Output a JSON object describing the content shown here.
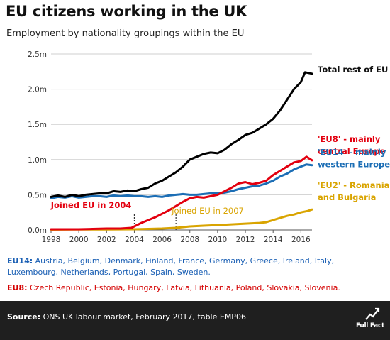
{
  "header": {
    "title": "EU citizens working in the UK",
    "subtitle": "Employment by nationality groupings within the EU"
  },
  "notes": {
    "eu14_label": "EU14:",
    "eu14_text": "Austria, Belgium, Denmark, Finland, France, Germany, Greece, Ireland, Italy, Luxembourg, Netherlands, Portugal, Spain, Sweden.",
    "eu8_label": "EU8:",
    "eu8_text": "Czech Republic, Estonia, Hungary, Latvia, Lithuania, Poland, Slovakia, Slovenia."
  },
  "footer": {
    "source_label": "Source:",
    "source_text": "ONS UK labour market, February 2017, table EMP06",
    "brand": "Full Fact"
  },
  "colors": {
    "total": "#000000",
    "eu8": "#e3000f",
    "eu14": "#1c6eb5",
    "eu2": "#d9a400"
  },
  "chart_data": {
    "type": "line",
    "title": "EU citizens working in the UK",
    "subtitle": "Employment by nationality groupings within the EU",
    "xlim": [
      1998,
      2016.8
    ],
    "ylim": [
      0,
      2.5
    ],
    "x_ticks": [
      1998,
      2000,
      2002,
      2004,
      2006,
      2008,
      2010,
      2012,
      2014,
      2016
    ],
    "y_ticks": [
      {
        "value": 0,
        "label": "0.0m"
      },
      {
        "value": 0.5,
        "label": "0.5m"
      },
      {
        "value": 1.0,
        "label": "1.0m"
      },
      {
        "value": 1.5,
        "label": "1.5m"
      },
      {
        "value": 2.0,
        "label": "2.0m"
      },
      {
        "value": 2.5,
        "label": "2.5m"
      }
    ],
    "grid": "horizontal",
    "series": [
      {
        "name": "Total rest of EU",
        "label_lines": [
          "Total rest of EU"
        ],
        "color": "#000000",
        "points": [
          [
            1998,
            0.47
          ],
          [
            1998.5,
            0.49
          ],
          [
            1999,
            0.47
          ],
          [
            1999.5,
            0.5
          ],
          [
            2000,
            0.48
          ],
          [
            2000.5,
            0.5
          ],
          [
            2001,
            0.51
          ],
          [
            2001.5,
            0.52
          ],
          [
            2002,
            0.52
          ],
          [
            2002.5,
            0.55
          ],
          [
            2003,
            0.54
          ],
          [
            2003.5,
            0.56
          ],
          [
            2004,
            0.55
          ],
          [
            2004.5,
            0.58
          ],
          [
            2005,
            0.6
          ],
          [
            2005.5,
            0.66
          ],
          [
            2006,
            0.7
          ],
          [
            2006.5,
            0.76
          ],
          [
            2007,
            0.82
          ],
          [
            2007.5,
            0.9
          ],
          [
            2008,
            1.0
          ],
          [
            2008.5,
            1.04
          ],
          [
            2009,
            1.08
          ],
          [
            2009.5,
            1.1
          ],
          [
            2010,
            1.09
          ],
          [
            2010.5,
            1.14
          ],
          [
            2011,
            1.22
          ],
          [
            2011.5,
            1.28
          ],
          [
            2012,
            1.35
          ],
          [
            2012.5,
            1.38
          ],
          [
            2013,
            1.44
          ],
          [
            2013.5,
            1.5
          ],
          [
            2014,
            1.58
          ],
          [
            2014.5,
            1.7
          ],
          [
            2015,
            1.85
          ],
          [
            2015.5,
            2.0
          ],
          [
            2016,
            2.1
          ],
          [
            2016.3,
            2.24
          ],
          [
            2016.8,
            2.22
          ]
        ]
      },
      {
        "name": "'EU8' - mainly central Europe",
        "label_lines": [
          "'EU8' - mainly",
          "central Europe"
        ],
        "color": "#e3000f",
        "points": [
          [
            1998,
            0.01
          ],
          [
            1999,
            0.01
          ],
          [
            2000,
            0.01
          ],
          [
            2001,
            0.015
          ],
          [
            2002,
            0.02
          ],
          [
            2003,
            0.02
          ],
          [
            2003.8,
            0.03
          ],
          [
            2004,
            0.05
          ],
          [
            2004.5,
            0.1
          ],
          [
            2005,
            0.14
          ],
          [
            2005.5,
            0.18
          ],
          [
            2006,
            0.23
          ],
          [
            2006.5,
            0.28
          ],
          [
            2007,
            0.34
          ],
          [
            2007.5,
            0.4
          ],
          [
            2008,
            0.45
          ],
          [
            2008.5,
            0.47
          ],
          [
            2009,
            0.46
          ],
          [
            2009.5,
            0.48
          ],
          [
            2010,
            0.5
          ],
          [
            2010.5,
            0.55
          ],
          [
            2011,
            0.6
          ],
          [
            2011.5,
            0.66
          ],
          [
            2012,
            0.68
          ],
          [
            2012.5,
            0.65
          ],
          [
            2013,
            0.67
          ],
          [
            2013.5,
            0.7
          ],
          [
            2014,
            0.78
          ],
          [
            2014.5,
            0.84
          ],
          [
            2015,
            0.9
          ],
          [
            2015.5,
            0.96
          ],
          [
            2016,
            0.98
          ],
          [
            2016.4,
            1.04
          ],
          [
            2016.8,
            0.99
          ]
        ]
      },
      {
        "name": "'EU14' - mainly western Europe",
        "label_lines": [
          "'EU14' - mainly",
          "western  Europe"
        ],
        "color": "#1c6eb5",
        "points": [
          [
            1998,
            0.45
          ],
          [
            1998.5,
            0.47
          ],
          [
            1999,
            0.46
          ],
          [
            1999.5,
            0.48
          ],
          [
            2000,
            0.46
          ],
          [
            2000.5,
            0.47
          ],
          [
            2001,
            0.48
          ],
          [
            2001.5,
            0.48
          ],
          [
            2002,
            0.47
          ],
          [
            2002.5,
            0.49
          ],
          [
            2003,
            0.48
          ],
          [
            2003.5,
            0.49
          ],
          [
            2004,
            0.48
          ],
          [
            2004.5,
            0.48
          ],
          [
            2005,
            0.47
          ],
          [
            2005.5,
            0.48
          ],
          [
            2006,
            0.47
          ],
          [
            2006.5,
            0.49
          ],
          [
            2007,
            0.5
          ],
          [
            2007.5,
            0.51
          ],
          [
            2008,
            0.5
          ],
          [
            2008.5,
            0.5
          ],
          [
            2009,
            0.51
          ],
          [
            2009.5,
            0.52
          ],
          [
            2010,
            0.52
          ],
          [
            2010.5,
            0.53
          ],
          [
            2011,
            0.55
          ],
          [
            2011.5,
            0.58
          ],
          [
            2012,
            0.6
          ],
          [
            2012.5,
            0.62
          ],
          [
            2013,
            0.63
          ],
          [
            2013.5,
            0.66
          ],
          [
            2014,
            0.7
          ],
          [
            2014.5,
            0.76
          ],
          [
            2015,
            0.8
          ],
          [
            2015.5,
            0.86
          ],
          [
            2016,
            0.9
          ],
          [
            2016.4,
            0.93
          ],
          [
            2016.8,
            0.92
          ]
        ]
      },
      {
        "name": "'EU2' - Romania and Bulgaria",
        "label_lines": [
          "'EU2' - Romania",
          "and Bulgaria"
        ],
        "color": "#d9a400",
        "points": [
          [
            1998,
            0.005
          ],
          [
            2000,
            0.007
          ],
          [
            2002,
            0.008
          ],
          [
            2004,
            0.01
          ],
          [
            2005,
            0.015
          ],
          [
            2006,
            0.02
          ],
          [
            2006.5,
            0.025
          ],
          [
            2007,
            0.03
          ],
          [
            2007.5,
            0.04
          ],
          [
            2008,
            0.05
          ],
          [
            2009,
            0.06
          ],
          [
            2010,
            0.07
          ],
          [
            2011,
            0.08
          ],
          [
            2012,
            0.09
          ],
          [
            2013,
            0.1
          ],
          [
            2013.5,
            0.11
          ],
          [
            2014,
            0.14
          ],
          [
            2014.5,
            0.17
          ],
          [
            2015,
            0.2
          ],
          [
            2015.5,
            0.22
          ],
          [
            2016,
            0.25
          ],
          [
            2016.5,
            0.27
          ],
          [
            2016.8,
            0.29
          ]
        ]
      }
    ],
    "annotations": [
      {
        "text": "Joined EU in 2004",
        "x": 2004,
        "color": "#e3000f"
      },
      {
        "text": "Joined EU in 2007",
        "x": 2007,
        "color": "#d9a400"
      }
    ]
  }
}
